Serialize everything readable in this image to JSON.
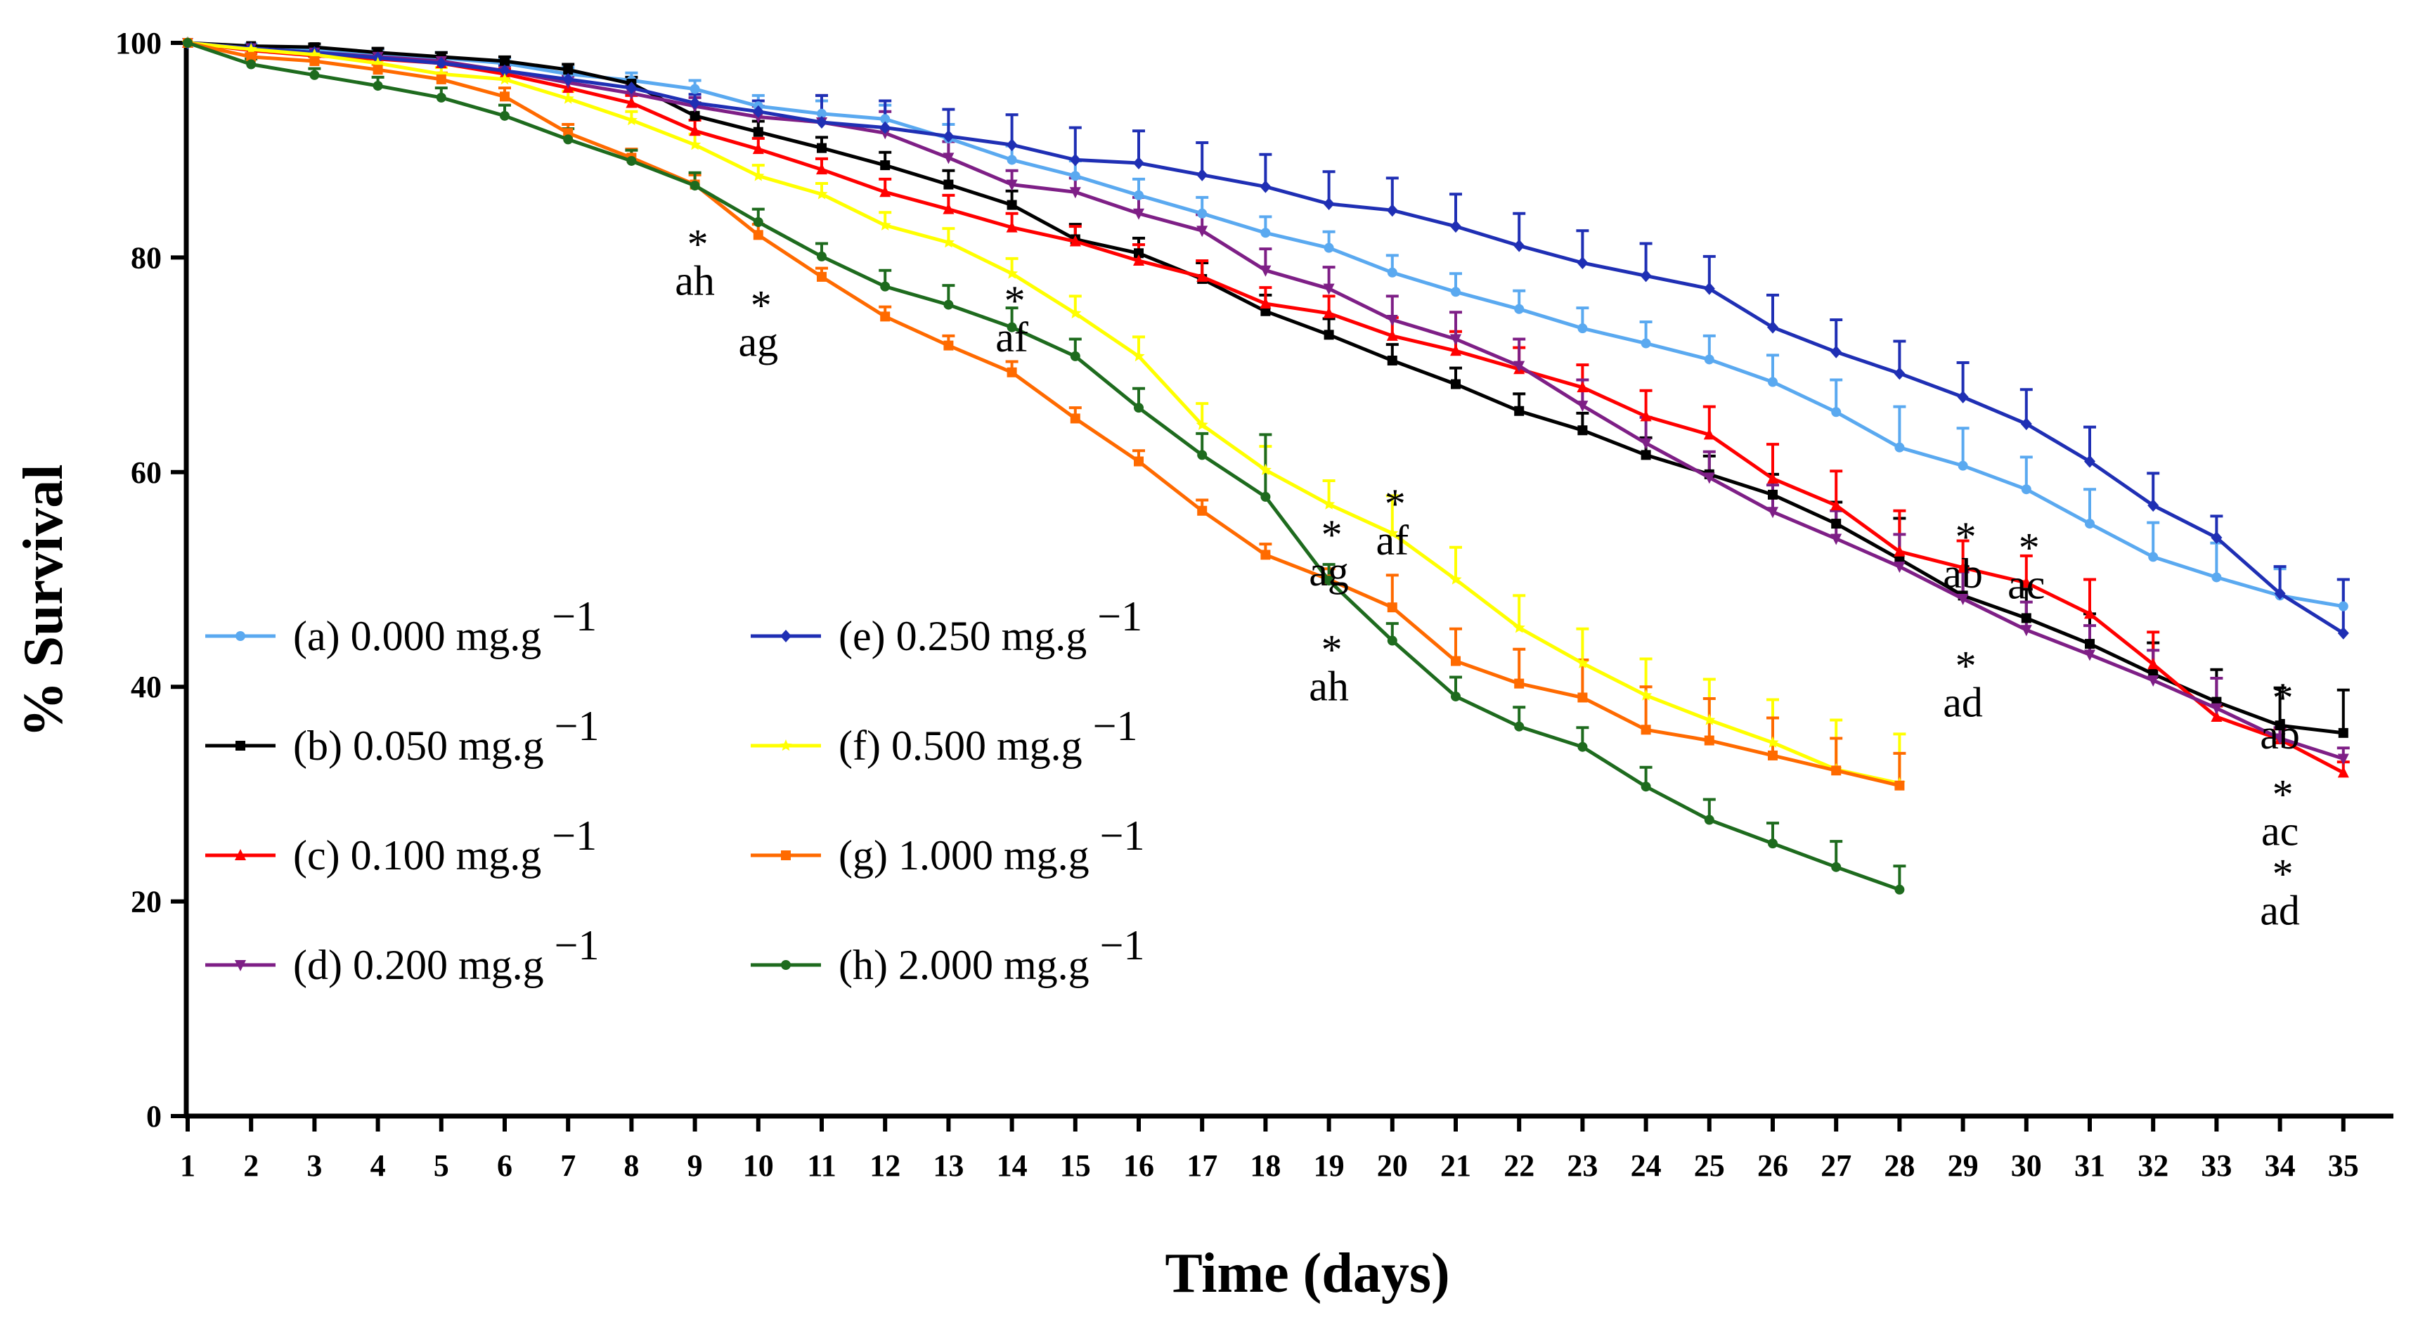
{
  "chart_data": {
    "type": "line",
    "title": "",
    "xlabel": "Time (days)",
    "ylabel": "% Survival",
    "xlim": [
      1,
      35
    ],
    "ylim": [
      0,
      100
    ],
    "x_ticks": [
      "1",
      "2",
      "3",
      "4",
      "5",
      "6",
      "7",
      "8",
      "9",
      "10",
      "11",
      "12",
      "13",
      "14",
      "15",
      "16",
      "17",
      "18",
      "19",
      "20",
      "21",
      "22",
      "23",
      "24",
      "25",
      "26",
      "27",
      "28",
      "29",
      "30",
      "31",
      "32",
      "33",
      "34",
      "35"
    ],
    "y_ticks": [
      "0",
      "20",
      "40",
      "60",
      "80",
      "100"
    ],
    "legend_position": "left",
    "series": [
      {
        "name": "(a) 0.000 mg.g",
        "sup": "−1",
        "color": "#5aa9f0",
        "marker": "circle",
        "values": [
          100,
          99.6,
          99.3,
          99,
          98.6,
          98.1,
          97.1,
          96.5,
          95.7,
          94.1,
          93.4,
          92.9,
          91.1,
          89.1,
          87.6,
          85.8,
          84.1,
          82.3,
          80.9,
          78.6,
          76.8,
          75.2,
          73.4,
          72,
          70.5,
          68.4,
          65.6,
          62.3,
          60.6,
          58.4,
          55.2,
          52.1,
          50.2,
          48.5,
          47.5
        ],
        "errors": [
          0.2,
          0.3,
          0.3,
          0.4,
          0.5,
          0.5,
          0.6,
          0.7,
          0.8,
          1.0,
          1.2,
          1.3,
          1.3,
          1.3,
          1.4,
          1.5,
          1.5,
          1.5,
          1.5,
          1.6,
          1.7,
          1.7,
          1.9,
          2.0,
          2.2,
          2.5,
          3.0,
          3.8,
          3.5,
          3.0,
          3.2,
          3.2,
          3.2,
          2.5,
          2.5
        ]
      },
      {
        "name": "(b) 0.050 mg.g",
        "sup": "−1",
        "color": "#000000",
        "marker": "square",
        "values": [
          100,
          99.7,
          99.6,
          99.1,
          98.7,
          98.3,
          97.5,
          96.2,
          93.2,
          91.7,
          90.2,
          88.6,
          86.8,
          84.9,
          81.7,
          80.4,
          78,
          75,
          72.8,
          70.4,
          68.2,
          65.7,
          63.9,
          61.6,
          59.8,
          57.9,
          55.2,
          51.9,
          48.5,
          46.4,
          44,
          41.2,
          38.6,
          36.4,
          35.7
        ],
        "errors": [
          0.2,
          0.2,
          0.3,
          0.4,
          0.4,
          0.4,
          0.5,
          0.6,
          1.2,
          1.0,
          1.0,
          1.2,
          1.3,
          1.3,
          1.4,
          1.4,
          1.5,
          1.5,
          1.5,
          1.5,
          1.5,
          1.6,
          1.6,
          1.6,
          1.7,
          1.9,
          2.0,
          3.8,
          2.7,
          2.7,
          2.8,
          2.9,
          3.0,
          3.5,
          4.0
        ]
      },
      {
        "name": "(c) 0.100 mg.g",
        "sup": "−1",
        "color": "#ff0000",
        "marker": "triangle",
        "values": [
          100,
          99.3,
          98.8,
          98.5,
          98.1,
          97.1,
          95.8,
          94.4,
          91.8,
          90.1,
          88.2,
          86.1,
          84.5,
          82.8,
          81.5,
          79.7,
          78.2,
          75.7,
          74.8,
          72.7,
          71.3,
          69.6,
          67.9,
          65.2,
          63.5,
          59.4,
          56.9,
          52.6,
          51.1,
          49.7,
          46.8,
          42.1,
          37.2,
          35.1,
          32
        ],
        "errors": [
          0.2,
          0.3,
          0.4,
          0.4,
          0.5,
          0.5,
          0.6,
          0.7,
          1.0,
          1.0,
          1.0,
          1.2,
          1.3,
          1.3,
          1.4,
          1.5,
          1.5,
          1.5,
          1.6,
          1.7,
          1.8,
          2.0,
          2.1,
          2.4,
          2.6,
          3.2,
          3.2,
          3.8,
          2.5,
          2.5,
          3.2,
          3.0,
          1.0,
          1.0,
          1.0
        ]
      },
      {
        "name": "(d) 0.200 mg.g",
        "sup": "−1",
        "color": "#7e1f86",
        "marker": "triangle-down",
        "values": [
          100,
          99.5,
          99.1,
          98.7,
          98.3,
          97.4,
          96.3,
          95.3,
          94.1,
          93.1,
          92.6,
          91.6,
          89.3,
          86.8,
          86.1,
          84.1,
          82.5,
          78.8,
          77.1,
          74.2,
          72.4,
          69.9,
          66.2,
          62.7,
          59.5,
          56.3,
          53.8,
          51.2,
          48.2,
          45.3,
          43,
          40.6,
          38,
          35.2,
          33.3
        ],
        "errors": [
          0.2,
          0.2,
          0.3,
          0.4,
          0.4,
          0.5,
          0.6,
          0.7,
          0.8,
          1.0,
          2.5,
          2.0,
          1.5,
          1.3,
          1.3,
          1.5,
          1.5,
          2.0,
          2.0,
          2.2,
          2.5,
          2.5,
          2.4,
          2.4,
          2.4,
          2.5,
          2.6,
          3.0,
          2.5,
          2.6,
          2.7,
          2.8,
          2.8,
          1.0,
          1.0
        ]
      },
      {
        "name": "(e) 0.250 mg.g",
        "sup": "−1",
        "color": "#1f2fb4",
        "marker": "diamond",
        "values": [
          100,
          99.5,
          99.1,
          98.6,
          98.1,
          97.4,
          96.6,
          95.8,
          94.4,
          93.6,
          92.6,
          92.1,
          91.3,
          90.5,
          89.1,
          88.8,
          87.7,
          86.6,
          85,
          84.4,
          82.9,
          81.1,
          79.5,
          78.3,
          77.1,
          73.5,
          71.2,
          69.2,
          67,
          64.5,
          61,
          56.9,
          53.9,
          48.7,
          45
        ],
        "errors": [
          0.2,
          0.2,
          0.3,
          0.4,
          0.4,
          0.5,
          0.6,
          0.7,
          0.8,
          1.0,
          2.5,
          2.5,
          2.5,
          2.8,
          3.0,
          3.0,
          3.0,
          3.0,
          3.0,
          3.0,
          3.0,
          3.0,
          3.0,
          3.0,
          3.0,
          3.0,
          3.0,
          3.0,
          3.2,
          3.2,
          3.2,
          3.0,
          2.0,
          2.5,
          5.0
        ]
      },
      {
        "name": "(f) 0.500 mg.g",
        "sup": "−1",
        "color": "#ffff00",
        "marker": "star",
        "values": [
          100,
          99.4,
          98.9,
          98.1,
          97.1,
          96.6,
          94.8,
          92.8,
          90.5,
          87.6,
          85.9,
          83,
          81.4,
          78.5,
          74.8,
          70.8,
          64.4,
          60.2,
          57,
          54.3,
          50,
          45.5,
          42.2,
          39.2,
          36.9,
          34.8,
          32.3,
          31
        ],
        "errors": [
          0.2,
          0.3,
          0.4,
          0.5,
          0.6,
          0.6,
          0.7,
          0.8,
          1.0,
          1.0,
          1.0,
          1.2,
          1.3,
          1.4,
          1.6,
          1.8,
          2.0,
          2.2,
          2.2,
          3.5,
          3.0,
          3.0,
          3.2,
          3.4,
          3.8,
          4.0,
          4.6,
          4.6
        ]
      },
      {
        "name": "(g) 1.000 mg.g",
        "sup": "−1",
        "color": "#ff6a00",
        "marker": "square",
        "values": [
          100,
          98.7,
          98.3,
          97.5,
          96.6,
          95,
          91.6,
          89.3,
          86.8,
          82.1,
          78.2,
          74.5,
          71.8,
          69.3,
          65,
          61,
          56.4,
          52.3,
          50,
          47.4,
          42.4,
          40.3,
          39,
          36,
          35,
          33.6,
          32.2,
          30.8
        ],
        "errors": [
          0.2,
          0.3,
          0.4,
          0.5,
          0.6,
          0.8,
          0.8,
          0.8,
          0.9,
          1.0,
          0.8,
          0.9,
          0.9,
          1.0,
          1.0,
          1.0,
          1.0,
          1.0,
          1.0,
          3.0,
          3.0,
          3.2,
          3.5,
          4.0,
          3.9,
          3.5,
          3.0,
          3.0
        ]
      },
      {
        "name": "(h) 2.000 mg.g",
        "sup": "−1",
        "color": "#1e6b1e",
        "marker": "circle",
        "values": [
          100,
          98,
          97,
          96,
          94.9,
          93.2,
          91,
          89,
          86.7,
          83.3,
          80.1,
          77.3,
          75.6,
          73.5,
          70.8,
          66,
          61.6,
          57.7,
          49.9,
          44.3,
          39.1,
          36.3,
          34.4,
          30.7,
          27.6,
          25.4,
          23.2,
          21.1
        ],
        "errors": [
          0.2,
          0.5,
          0.6,
          0.8,
          0.9,
          1.0,
          1.0,
          1.0,
          1.2,
          1.2,
          1.2,
          1.5,
          1.8,
          1.8,
          1.6,
          1.8,
          2.0,
          5.8,
          1.5,
          1.6,
          1.8,
          1.8,
          1.8,
          1.8,
          1.9,
          1.9,
          2.4,
          2.2
        ]
      }
    ],
    "annotations": [
      {
        "text": "ah",
        "star": "*",
        "x": 9,
        "y": 78.5
      },
      {
        "text": "ag",
        "star": "*",
        "x": 10,
        "y": 72.8
      },
      {
        "text": "af",
        "star": "*",
        "x": 14,
        "y": 73.2
      },
      {
        "text": "af",
        "star": "*",
        "x": 20,
        "y": 54.3
      },
      {
        "text": "ag",
        "star": "*",
        "x": 19,
        "y": 51.4
      },
      {
        "text": "ah",
        "star": "*",
        "x": 19,
        "y": 40.7
      },
      {
        "text": "ab",
        "star": "*",
        "x": 29,
        "y": 51.2
      },
      {
        "text": "ac",
        "star": "*",
        "x": 30,
        "y": 50.2
      },
      {
        "text": "ad",
        "star": "*",
        "x": 29,
        "y": 39.2
      },
      {
        "text": "ab",
        "star": "*",
        "x": 34,
        "y": 36.2
      },
      {
        "text": "ac",
        "star": "*",
        "x": 34,
        "y": 27.2
      },
      {
        "text": "ad",
        "star": "*",
        "x": 34,
        "y": 19.8
      }
    ]
  }
}
